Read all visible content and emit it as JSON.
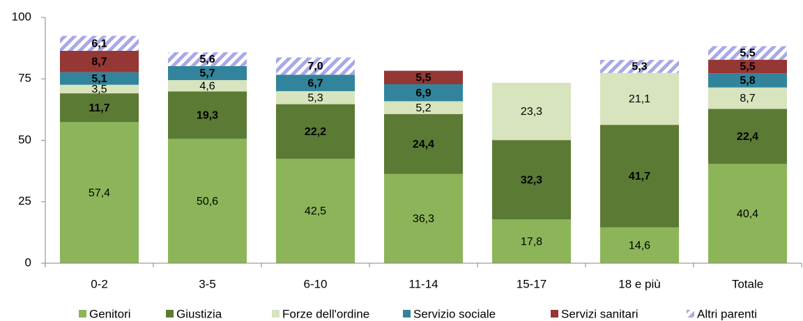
{
  "chart_data": {
    "type": "stacked_bar",
    "categories": [
      "0-2",
      "3-5",
      "6-10",
      "11-14",
      "15-17",
      "18 e più",
      "Totale"
    ],
    "series": [
      {
        "name": "Genitori",
        "color": "#8cb55a",
        "values": [
          57.4,
          50.6,
          42.5,
          36.3,
          17.8,
          14.6,
          40.4
        ],
        "value_labels": [
          "57,4",
          "50,6",
          "42,5",
          "36,3",
          "17,8",
          "14,6",
          "40,4"
        ]
      },
      {
        "name": "Giustizia",
        "color": "#5b7a34",
        "values": [
          11.7,
          19.3,
          22.2,
          24.4,
          32.3,
          41.7,
          22.4
        ],
        "value_labels": [
          "11,7",
          "19,3",
          "22,2",
          "24,4",
          "32,3",
          "41,7",
          "22,4"
        ]
      },
      {
        "name": "Forze dell'ordine",
        "color": "#d7e4bd",
        "values": [
          3.5,
          4.6,
          5.3,
          5.2,
          23.3,
          21.1,
          8.7
        ],
        "value_labels": [
          "3,5",
          "4,6",
          "5,3",
          "5,2",
          "23,3",
          "21,1",
          "8,7"
        ]
      },
      {
        "name": "Servizio sociale",
        "color": "#31849b",
        "values": [
          5.1,
          5.7,
          6.7,
          6.9,
          null,
          null,
          5.8
        ],
        "value_labels": [
          "5,1",
          "5,7",
          "6,7",
          "6,9",
          null,
          null,
          "5,8"
        ]
      },
      {
        "name": "Servizi sanitari",
        "color": "#953735",
        "values": [
          8.7,
          null,
          null,
          5.5,
          null,
          null,
          5.5
        ],
        "value_labels": [
          "8,7",
          null,
          null,
          "5,5",
          null,
          null,
          "5,5"
        ]
      },
      {
        "name": "Altri parenti",
        "color": "#a8a8e8",
        "values": [
          6.1,
          5.6,
          7.0,
          null,
          null,
          5.3,
          5.5
        ],
        "value_labels": [
          "6,1",
          "5,6",
          "7,0",
          null,
          null,
          "5,3",
          "5,5"
        ]
      }
    ],
    "ylim": [
      0,
      100
    ],
    "yticks": [
      0,
      25,
      50,
      75,
      100
    ]
  }
}
